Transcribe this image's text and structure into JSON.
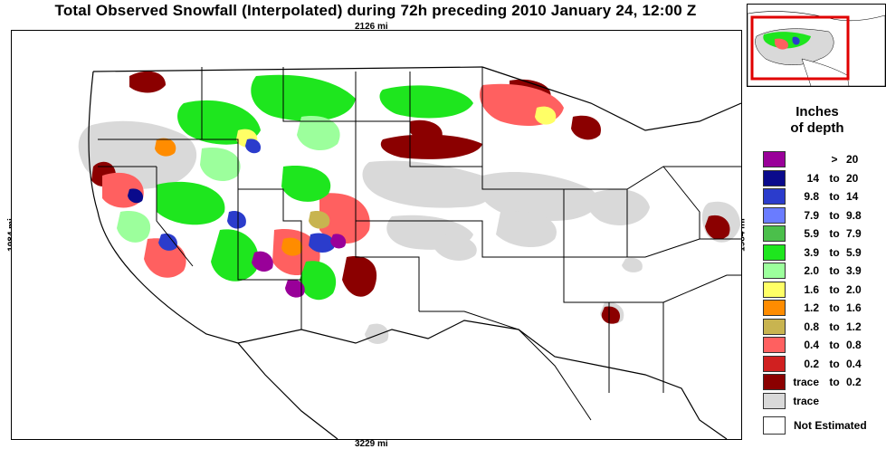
{
  "title": "Total Observed Snowfall (Interpolated) during 72h preceding 2010 January 24, 12:00 Z",
  "distances": {
    "top": "2126 mi",
    "bottom": "3229 mi",
    "left": "1984 mi",
    "right": "1984 mi"
  },
  "legend": {
    "title_line1": "Inches",
    "title_line2": "of depth",
    "items": [
      {
        "lo": "",
        "to": ">",
        "hi": "20",
        "color": "#990099"
      },
      {
        "lo": "14",
        "to": "to",
        "hi": "20",
        "color": "#0a0a8c"
      },
      {
        "lo": "9.8",
        "to": "to",
        "hi": "14",
        "color": "#2b3ccc"
      },
      {
        "lo": "7.9",
        "to": "to",
        "hi": "9.8",
        "color": "#6a7cff"
      },
      {
        "lo": "5.9",
        "to": "to",
        "hi": "7.9",
        "color": "#4bbf4b"
      },
      {
        "lo": "3.9",
        "to": "to",
        "hi": "5.9",
        "color": "#1ee61e"
      },
      {
        "lo": "2.0",
        "to": "to",
        "hi": "3.9",
        "color": "#9cff9c"
      },
      {
        "lo": "1.6",
        "to": "to",
        "hi": "2.0",
        "color": "#ffff66"
      },
      {
        "lo": "1.2",
        "to": "to",
        "hi": "1.6",
        "color": "#ff8c00"
      },
      {
        "lo": "0.8",
        "to": "to",
        "hi": "1.2",
        "color": "#c8b450"
      },
      {
        "lo": "0.4",
        "to": "to",
        "hi": "0.8",
        "color": "#ff6060"
      },
      {
        "lo": "0.2",
        "to": "to",
        "hi": "0.4",
        "color": "#d02020"
      },
      {
        "lo": "trace",
        "to": "to",
        "hi": "0.2",
        "color": "#8b0000"
      },
      {
        "lo": "trace",
        "to": "",
        "hi": "",
        "color": "#d9d9d9"
      }
    ],
    "not_estimated_label": "Not Estimated",
    "not_estimated_color": "#ffffff"
  },
  "locator_box_color": "#e00000"
}
